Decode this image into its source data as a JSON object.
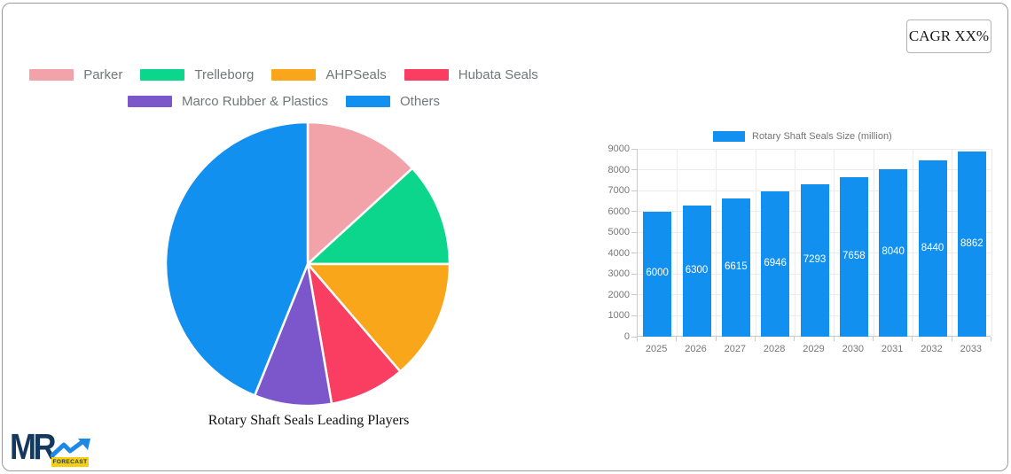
{
  "card": {
    "cagr_label": "CAGR XX%"
  },
  "logo": {
    "text": "MR",
    "badge": "FORECAST"
  },
  "colors": {
    "bar_blue": "#1190f0",
    "navy": "#14385e",
    "badge_yellow": "#f7cf0e",
    "grid": "#ececec",
    "axis": "#c9c9c9",
    "tick_text": "#777777",
    "legend_text": "#73767a"
  },
  "chart_data": [
    {
      "type": "pie",
      "title": "Rotary Shaft Seals Leading Players",
      "legend_position": "top",
      "unit": "percent",
      "series": [
        {
          "name": "Parker",
          "value": 13.2,
          "color": "#f2a3a9"
        },
        {
          "name": "Trelleborg",
          "value": 11.8,
          "color": "#0cd68c"
        },
        {
          "name": "AHPSeals",
          "value": 13.7,
          "color": "#f9a61a"
        },
        {
          "name": "Hubata Seals",
          "value": 8.6,
          "color": "#f93e62"
        },
        {
          "name": "Marco Rubber & Plastics",
          "value": 8.8,
          "color": "#7c57cc"
        },
        {
          "name": "Others",
          "value": 43.9,
          "color": "#1190f0"
        }
      ],
      "legend_rows": [
        [
          0,
          1,
          2,
          3
        ],
        [
          4,
          5
        ]
      ]
    },
    {
      "type": "bar",
      "legend": "Rotary Shaft Seals Size (million)",
      "categories": [
        "2025",
        "2026",
        "2027",
        "2028",
        "2029",
        "2030",
        "2031",
        "2032",
        "2033"
      ],
      "values": [
        6000,
        6300,
        6615,
        6946,
        7293,
        7658,
        8040,
        8440,
        8862
      ],
      "ylim": [
        0,
        9000
      ],
      "ytick_step": 1000,
      "grid": true,
      "bar_color": "#1190f0",
      "value_label_style": "white-inside"
    }
  ]
}
